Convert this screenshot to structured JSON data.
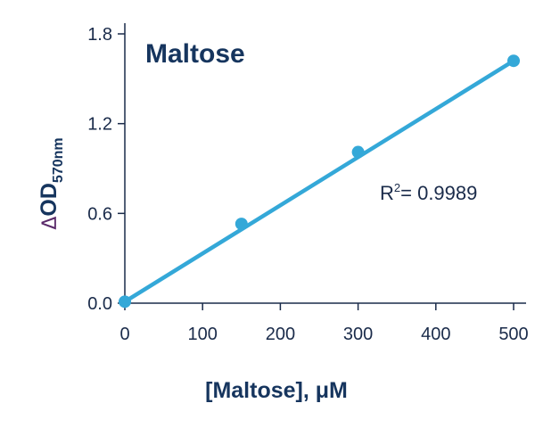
{
  "chart_data": {
    "type": "scatter",
    "title": "Maltose",
    "xlabel": "[Maltose], μM",
    "ylabel": {
      "delta": "Δ",
      "main": "OD",
      "sub": "570nm"
    },
    "xlim": [
      0,
      500
    ],
    "ylim": [
      0,
      1.8
    ],
    "xticks": [
      "0",
      "100",
      "200",
      "300",
      "400",
      "500"
    ],
    "xtick_values": [
      0,
      100,
      200,
      300,
      400,
      500
    ],
    "yticks": [
      "0.0",
      "0.6",
      "1.2",
      "1.8"
    ],
    "ytick_values": [
      0,
      0.6,
      1.2,
      1.8
    ],
    "series": [
      {
        "x": [
          0,
          150,
          300,
          500
        ],
        "y": [
          0.01,
          0.53,
          1.01,
          1.62
        ]
      }
    ],
    "fit_line": {
      "x": [
        0,
        500
      ],
      "y": [
        0.01,
        1.62
      ]
    },
    "annotation": {
      "base": "R",
      "sup": "2",
      "rest": "= 0.9989"
    },
    "grid": false,
    "color": "#34a8d8"
  }
}
